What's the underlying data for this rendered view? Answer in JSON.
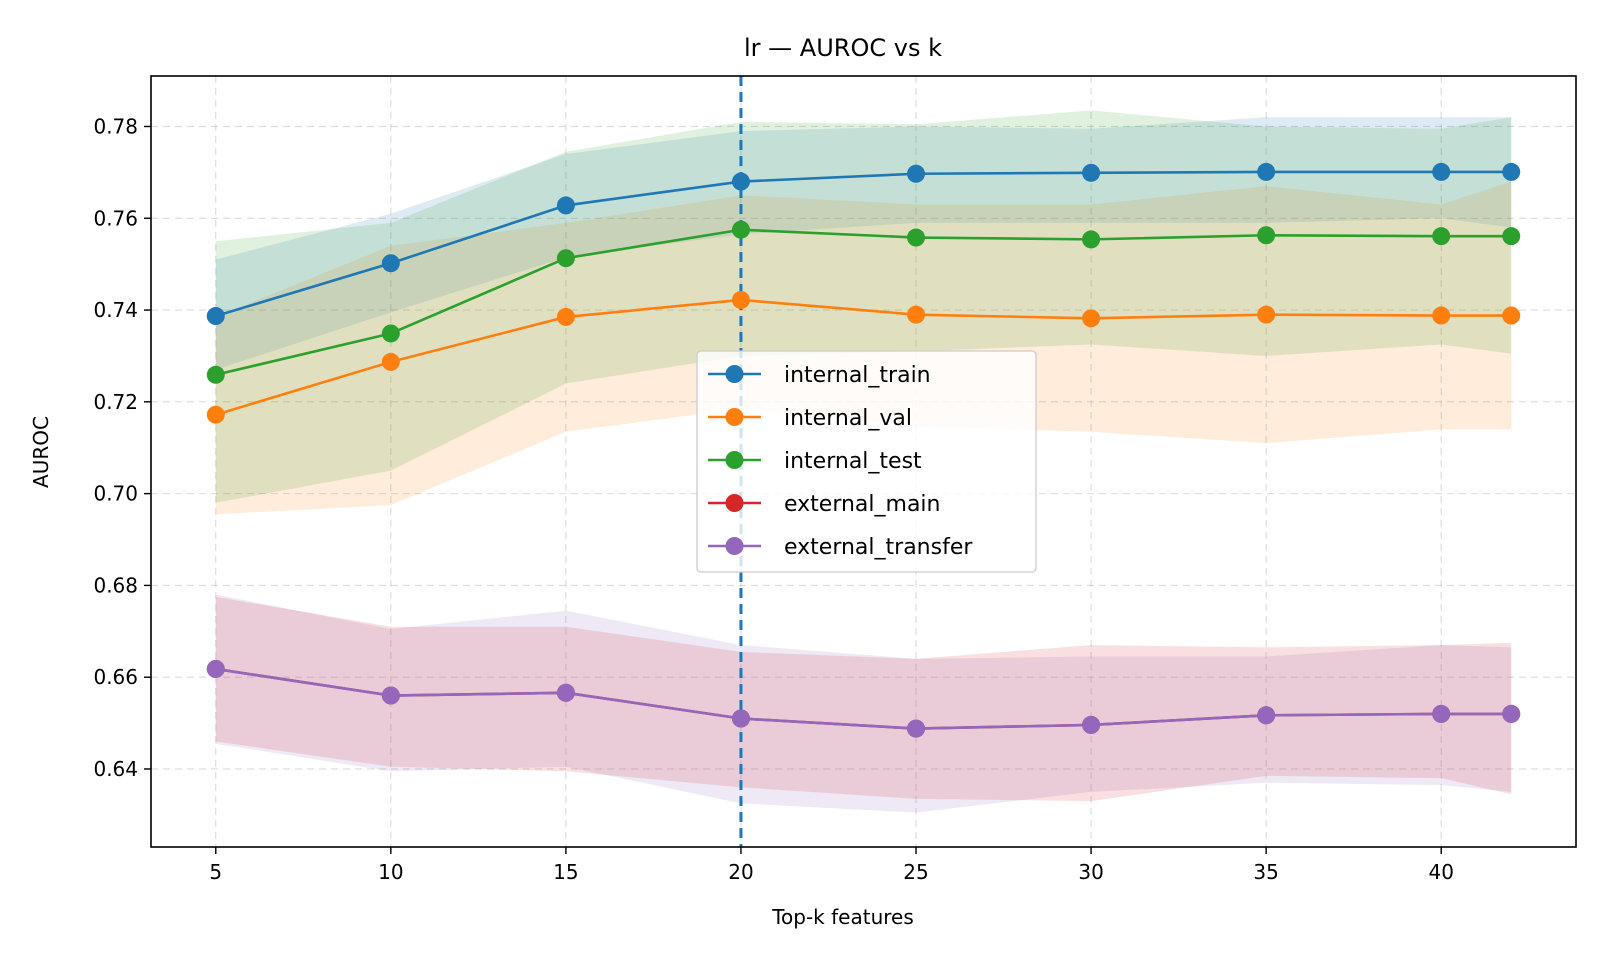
{
  "chart_data": {
    "type": "line",
    "title": "lr — AUROC vs k",
    "xlabel": "Top-k features",
    "ylabel": "AUROC",
    "x": [
      5,
      10,
      15,
      20,
      25,
      30,
      35,
      40,
      42
    ],
    "xticks": [
      5,
      10,
      15,
      20,
      25,
      30,
      35,
      40
    ],
    "yticks": [
      0.64,
      0.66,
      0.68,
      0.7,
      0.72,
      0.74,
      0.76,
      0.78
    ],
    "xlim": [
      3.15,
      43.85
    ],
    "ylim": [
      0.623,
      0.791
    ],
    "grid": true,
    "legend_position": "center",
    "vline_x": 20,
    "vline_color": "#1f77b4",
    "series": [
      {
        "name": "internal_train",
        "color": "#1f77b4",
        "values": [
          0.7387,
          0.7502,
          0.7628,
          0.768,
          0.7697,
          0.7699,
          0.7701,
          0.7701,
          0.7701
        ],
        "lower": [
          0.727,
          0.7395,
          0.7515,
          0.7565,
          0.759,
          0.759,
          0.759,
          0.76,
          0.758
        ],
        "upper": [
          0.751,
          0.761,
          0.774,
          0.779,
          0.78,
          0.7795,
          0.782,
          0.782,
          0.782
        ]
      },
      {
        "name": "internal_val",
        "color": "#ff7f0e",
        "values": [
          0.7172,
          0.7287,
          0.7385,
          0.7422,
          0.739,
          0.7382,
          0.739,
          0.7388,
          0.7388
        ],
        "lower": [
          0.6955,
          0.6975,
          0.7135,
          0.7185,
          0.7145,
          0.7135,
          0.711,
          0.714,
          0.714
        ],
        "upper": [
          0.7385,
          0.754,
          0.759,
          0.765,
          0.763,
          0.763,
          0.767,
          0.763,
          0.768
        ]
      },
      {
        "name": "internal_test",
        "color": "#2ca02c",
        "values": [
          0.7259,
          0.7349,
          0.7513,
          0.7575,
          0.7558,
          0.7554,
          0.7563,
          0.7561,
          0.7561
        ],
        "lower": [
          0.698,
          0.705,
          0.724,
          0.73,
          0.731,
          0.7325,
          0.73,
          0.7325,
          0.7305
        ],
        "upper": [
          0.755,
          0.759,
          0.7745,
          0.781,
          0.7805,
          0.7835,
          0.78,
          0.7795,
          0.782
        ]
      },
      {
        "name": "external_main",
        "color": "#d62728",
        "values": [
          0.6618,
          0.656,
          0.6566,
          0.651,
          0.6488,
          0.6496,
          0.6517,
          0.652,
          0.652
        ],
        "lower": [
          0.646,
          0.6405,
          0.6395,
          0.636,
          0.6335,
          0.633,
          0.6385,
          0.638,
          0.6345
        ],
        "upper": [
          0.6775,
          0.671,
          0.671,
          0.6655,
          0.664,
          0.667,
          0.6665,
          0.667,
          0.6675
        ]
      },
      {
        "name": "external_transfer",
        "color": "#9467bd",
        "values": [
          0.6618,
          0.656,
          0.6566,
          0.651,
          0.6488,
          0.6496,
          0.6517,
          0.652,
          0.652
        ],
        "lower": [
          0.6455,
          0.6395,
          0.6405,
          0.6325,
          0.6305,
          0.635,
          0.637,
          0.6365,
          0.635
        ],
        "upper": [
          0.678,
          0.6705,
          0.6745,
          0.667,
          0.664,
          0.6645,
          0.6645,
          0.667,
          0.6665
        ]
      }
    ]
  }
}
